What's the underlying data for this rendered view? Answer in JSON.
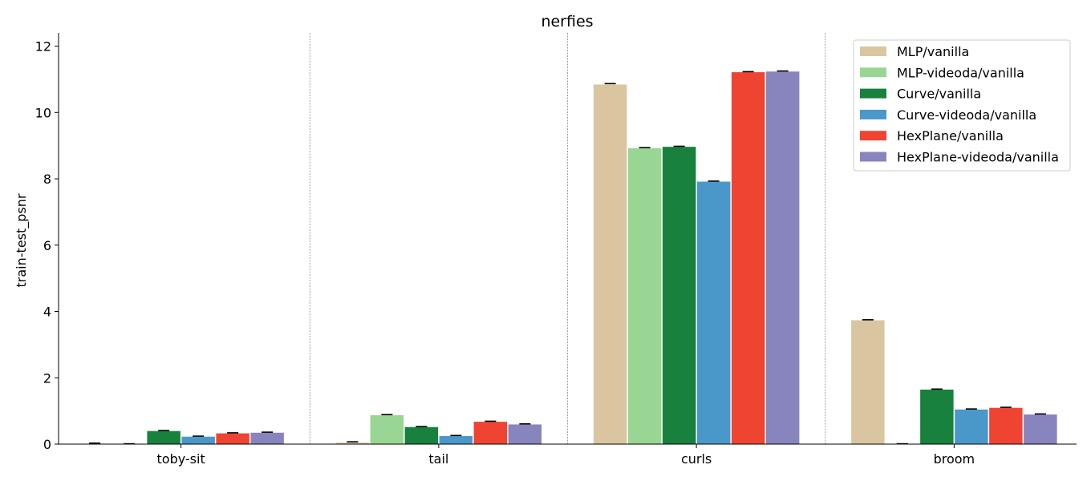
{
  "chart_data": {
    "type": "bar",
    "title": "nerfies",
    "xlabel": "",
    "ylabel": "train-test_psnr",
    "ylim": [
      0,
      12.4
    ],
    "yticks": [
      0,
      2,
      4,
      6,
      8,
      10,
      12
    ],
    "categories": [
      "toby-sit",
      "tail",
      "curls",
      "broom"
    ],
    "legend_position": "top-right",
    "grid": false,
    "series": [
      {
        "name": "MLP/vanilla",
        "color": "#d9c6a0",
        "values": [
          0.0,
          0.05,
          10.85,
          3.74
        ]
      },
      {
        "name": "MLP-videoda/vanilla",
        "color": "#9ad693",
        "values": [
          0.0,
          0.88,
          8.93,
          0.0
        ]
      },
      {
        "name": "Curve/vanilla",
        "color": "#17813d",
        "values": [
          0.4,
          0.52,
          8.97,
          1.65
        ]
      },
      {
        "name": "Curve-videoda/vanilla",
        "color": "#4a97c9",
        "values": [
          0.23,
          0.25,
          7.92,
          1.05
        ]
      },
      {
        "name": "HexPlane/vanilla",
        "color": "#f04433",
        "values": [
          0.33,
          0.68,
          11.22,
          1.1
        ]
      },
      {
        "name": "HexPlane-videoda/vanilla",
        "color": "#8884bd",
        "values": [
          0.35,
          0.6,
          11.24,
          0.9
        ]
      }
    ],
    "error_caps": [
      [
        0.03,
        0.07,
        10.87,
        3.75
      ],
      [
        0.01,
        0.89,
        8.94,
        0.01
      ],
      [
        0.41,
        0.53,
        8.98,
        1.66
      ],
      [
        0.24,
        0.26,
        7.93,
        1.06
      ],
      [
        0.34,
        0.69,
        11.23,
        1.11
      ],
      [
        0.36,
        0.61,
        11.25,
        0.91
      ]
    ]
  }
}
